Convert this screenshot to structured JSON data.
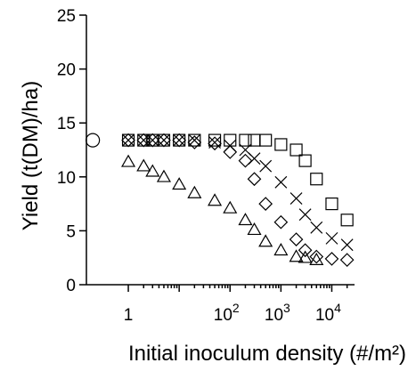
{
  "chart_data": {
    "type": "scatter",
    "xscale": "log",
    "xlabel": "Initial inoculum density (#/m²)",
    "ylabel": "Yield (t(DM)/ha)",
    "xlim": [
      0.15,
      28000
    ],
    "ylim": [
      0,
      25
    ],
    "y_ticks": [
      "0",
      "5",
      "10",
      "15",
      "20",
      "25"
    ],
    "x_ticks": [
      {
        "base": "1",
        "exp": ""
      },
      {
        "base": "10",
        "exp": "2"
      },
      {
        "base": "10",
        "exp": "3"
      },
      {
        "base": "10",
        "exp": "4"
      }
    ],
    "grid": false,
    "series": [
      {
        "marker": "circle",
        "points": [
          [
            0.2,
            13.4
          ]
        ]
      },
      {
        "marker": "square",
        "points": [
          [
            1,
            13.4
          ],
          [
            2,
            13.4
          ],
          [
            3,
            13.4
          ],
          [
            5,
            13.4
          ],
          [
            10,
            13.4
          ],
          [
            20,
            13.4
          ],
          [
            50,
            13.4
          ],
          [
            100,
            13.4
          ],
          [
            200,
            13.4
          ],
          [
            300,
            13.4
          ],
          [
            500,
            13.4
          ],
          [
            1000,
            13.0
          ],
          [
            2000,
            12.5
          ],
          [
            3000,
            11.5
          ],
          [
            5000,
            9.8
          ],
          [
            10000,
            7.5
          ],
          [
            20000,
            6.0
          ]
        ]
      },
      {
        "marker": "x",
        "points": [
          [
            1,
            13.4
          ],
          [
            2,
            13.4
          ],
          [
            3,
            13.4
          ],
          [
            5,
            13.4
          ],
          [
            10,
            13.4
          ],
          [
            20,
            13.4
          ],
          [
            50,
            13.2
          ],
          [
            100,
            12.9
          ],
          [
            200,
            12.5
          ],
          [
            300,
            11.7
          ],
          [
            500,
            11.0
          ],
          [
            1000,
            9.5
          ],
          [
            2000,
            8.0
          ],
          [
            3000,
            6.5
          ],
          [
            5000,
            5.3
          ],
          [
            10000,
            4.3
          ],
          [
            20000,
            3.7
          ]
        ]
      },
      {
        "marker": "diamond",
        "points": [
          [
            1,
            13.4
          ],
          [
            2,
            13.4
          ],
          [
            3,
            13.4
          ],
          [
            5,
            13.4
          ],
          [
            10,
            13.4
          ],
          [
            20,
            13.2
          ],
          [
            50,
            13.1
          ],
          [
            100,
            12.3
          ],
          [
            200,
            11.5
          ],
          [
            300,
            9.8
          ],
          [
            500,
            7.5
          ],
          [
            1000,
            5.8
          ],
          [
            2000,
            4.2
          ],
          [
            3000,
            3.2
          ],
          [
            5000,
            2.6
          ],
          [
            10000,
            2.4
          ],
          [
            20000,
            2.3
          ]
        ]
      },
      {
        "marker": "triangle",
        "points": [
          [
            1,
            11.4
          ],
          [
            2,
            11.0
          ],
          [
            3,
            10.5
          ],
          [
            5,
            10.0
          ],
          [
            10,
            9.3
          ],
          [
            20,
            8.5
          ],
          [
            50,
            7.8
          ],
          [
            100,
            7.1
          ],
          [
            200,
            6.0
          ],
          [
            300,
            5.1
          ],
          [
            500,
            4.0
          ],
          [
            1000,
            3.2
          ],
          [
            2000,
            2.6
          ],
          [
            3000,
            2.5
          ],
          [
            5000,
            2.3
          ]
        ]
      }
    ]
  }
}
